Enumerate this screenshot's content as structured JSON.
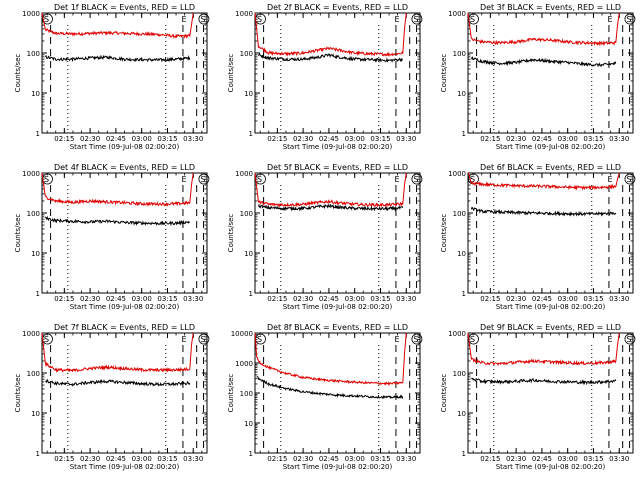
{
  "chart_data": [
    {
      "type": "line",
      "title": "Det 1f BLACK = Events, RED = LLD",
      "xlabel": "Start Time (09-Jul-08 02:00:20)",
      "ylabel": "Counts/sec",
      "yscale": "log",
      "ylim": [
        1,
        1000
      ],
      "xlim": [
        "02:02",
        "03:38"
      ],
      "xticks": [
        "02:15",
        "02:30",
        "02:45",
        "03:00",
        "03:15",
        "03:30"
      ],
      "yticks": [
        "1",
        "10",
        "100",
        "1000"
      ],
      "markers": [
        {
          "label": "S",
          "x": "02:02"
        },
        {
          "label": "E",
          "x": "03:22"
        },
        {
          "label": "S",
          "x": "03:33"
        }
      ],
      "series": [
        {
          "name": "LLD",
          "color": "#e00000",
          "x": [
            "02:02",
            "02:04",
            "02:10",
            "02:20",
            "02:30",
            "02:40",
            "02:50",
            "03:00",
            "03:10",
            "03:20",
            "03:28",
            "03:29",
            "03:30"
          ],
          "y": [
            1000,
            380,
            310,
            300,
            310,
            320,
            310,
            300,
            290,
            260,
            270,
            500,
            1000
          ]
        },
        {
          "name": "Events",
          "color": "#000000",
          "x": [
            "02:04",
            "02:10",
            "02:20",
            "02:30",
            "02:40",
            "02:50",
            "03:00",
            "03:10",
            "03:20",
            "03:28"
          ],
          "y": [
            80,
            70,
            70,
            75,
            78,
            70,
            68,
            67,
            70,
            75
          ]
        }
      ]
    },
    {
      "type": "line",
      "title": "Det 2f BLACK = Events, RED = LLD",
      "xlabel": "Start Time (09-Jul-08 02:00:20)",
      "ylabel": "Counts/sec",
      "yscale": "log",
      "ylim": [
        1,
        1000
      ],
      "xlim": [
        "02:02",
        "03:38"
      ],
      "xticks": [
        "02:15",
        "02:30",
        "02:45",
        "03:00",
        "03:15",
        "03:30"
      ],
      "yticks": [
        "1",
        "10",
        "100",
        "1000"
      ],
      "markers": [
        {
          "label": "S",
          "x": "02:02"
        },
        {
          "label": "E",
          "x": "03:22"
        },
        {
          "label": "S",
          "x": "03:33"
        }
      ],
      "series": [
        {
          "name": "LLD",
          "color": "#e00000",
          "x": [
            "02:02",
            "02:04",
            "02:10",
            "02:20",
            "02:30",
            "02:40",
            "02:45",
            "02:50",
            "03:00",
            "03:10",
            "03:20",
            "03:28",
            "03:29",
            "03:30"
          ],
          "y": [
            1000,
            150,
            100,
            95,
            100,
            120,
            130,
            120,
            100,
            95,
            92,
            100,
            400,
            1000
          ]
        },
        {
          "name": "Events",
          "color": "#000000",
          "x": [
            "02:04",
            "02:10",
            "02:20",
            "02:30",
            "02:40",
            "02:45",
            "02:50",
            "03:00",
            "03:10",
            "03:20",
            "03:28"
          ],
          "y": [
            90,
            75,
            70,
            70,
            80,
            90,
            80,
            70,
            68,
            65,
            70
          ]
        }
      ]
    },
    {
      "type": "line",
      "title": "Det 3f BLACK = Events, RED = LLD",
      "xlabel": "Start Time (09-Jul-08 02:00:20)",
      "ylabel": "Counts/sec",
      "yscale": "log",
      "ylim": [
        1,
        1000
      ],
      "xlim": [
        "02:02",
        "03:38"
      ],
      "xticks": [
        "02:15",
        "02:30",
        "02:45",
        "03:00",
        "03:15",
        "03:30"
      ],
      "yticks": [
        "1",
        "10",
        "100",
        "1000"
      ],
      "markers": [
        {
          "label": "S",
          "x": "02:02"
        },
        {
          "label": "E",
          "x": "03:22"
        },
        {
          "label": "S",
          "x": "03:33"
        }
      ],
      "series": [
        {
          "name": "LLD",
          "color": "#e00000",
          "x": [
            "02:02",
            "02:04",
            "02:10",
            "02:20",
            "02:30",
            "02:40",
            "02:50",
            "03:00",
            "03:10",
            "03:20",
            "03:28",
            "03:29",
            "03:30"
          ],
          "y": [
            1000,
            220,
            190,
            180,
            190,
            220,
            210,
            190,
            180,
            175,
            180,
            500,
            1000
          ]
        },
        {
          "name": "Events",
          "color": "#000000",
          "x": [
            "02:04",
            "02:10",
            "02:20",
            "02:30",
            "02:40",
            "02:50",
            "03:00",
            "03:10",
            "03:20",
            "03:28"
          ],
          "y": [
            75,
            62,
            55,
            58,
            68,
            62,
            58,
            52,
            50,
            55
          ]
        }
      ]
    },
    {
      "type": "line",
      "title": "Det 4f BLACK = Events, RED = LLD",
      "xlabel": "Start Time (09-Jul-08 02:00:20)",
      "ylabel": "Counts/sec",
      "yscale": "log",
      "ylim": [
        1,
        1000
      ],
      "xlim": [
        "02:02",
        "03:38"
      ],
      "xticks": [
        "02:15",
        "02:30",
        "02:45",
        "03:00",
        "03:15",
        "03:30"
      ],
      "yticks": [
        "1",
        "10",
        "100",
        "1000"
      ],
      "markers": [
        {
          "label": "S",
          "x": "02:02"
        },
        {
          "label": "E",
          "x": "03:22"
        },
        {
          "label": "S",
          "x": "03:33"
        }
      ],
      "series": [
        {
          "name": "LLD",
          "color": "#e00000",
          "x": [
            "02:02",
            "02:04",
            "02:10",
            "02:20",
            "02:30",
            "02:40",
            "02:50",
            "03:00",
            "03:10",
            "03:20",
            "03:28",
            "03:29",
            "03:30"
          ],
          "y": [
            1000,
            250,
            200,
            185,
            200,
            190,
            180,
            170,
            168,
            170,
            180,
            500,
            1000
          ]
        },
        {
          "name": "Events",
          "color": "#000000",
          "x": [
            "02:04",
            "02:10",
            "02:20",
            "02:30",
            "02:40",
            "02:50",
            "03:00",
            "03:10",
            "03:20",
            "03:28"
          ],
          "y": [
            75,
            65,
            62,
            60,
            62,
            58,
            56,
            55,
            56,
            60
          ]
        }
      ]
    },
    {
      "type": "line",
      "title": "Det 5f BLACK = Events, RED = LLD",
      "xlabel": "Start Time (09-Jul-08 02:00:20)",
      "ylabel": "Counts/sec",
      "yscale": "log",
      "ylim": [
        1,
        1000
      ],
      "xlim": [
        "02:02",
        "03:38"
      ],
      "xticks": [
        "02:15",
        "02:30",
        "02:45",
        "03:00",
        "03:15",
        "03:30"
      ],
      "yticks": [
        "1",
        "10",
        "100",
        "1000"
      ],
      "markers": [
        {
          "label": "S",
          "x": "02:02"
        },
        {
          "label": "E",
          "x": "03:22"
        },
        {
          "label": "S",
          "x": "03:33"
        }
      ],
      "series": [
        {
          "name": "LLD",
          "color": "#e00000",
          "x": [
            "02:02",
            "02:04",
            "02:10",
            "02:20",
            "02:30",
            "02:40",
            "02:45",
            "02:50",
            "03:00",
            "03:10",
            "03:20",
            "03:28",
            "03:29",
            "03:30"
          ],
          "y": [
            1000,
            190,
            165,
            160,
            165,
            185,
            195,
            180,
            165,
            160,
            160,
            170,
            500,
            1000
          ]
        },
        {
          "name": "Events",
          "color": "#000000",
          "x": [
            "02:04",
            "02:10",
            "02:20",
            "02:30",
            "02:40",
            "02:45",
            "02:50",
            "03:00",
            "03:10",
            "03:20",
            "03:28"
          ],
          "y": [
            150,
            135,
            130,
            130,
            145,
            150,
            140,
            130,
            128,
            128,
            135
          ]
        }
      ]
    },
    {
      "type": "line",
      "title": "Det 6f BLACK = Events, RED = LLD",
      "xlabel": "Start Time (09-Jul-08 02:00:20)",
      "ylabel": "Counts/sec",
      "yscale": "log",
      "ylim": [
        1,
        1000
      ],
      "xlim": [
        "02:02",
        "03:38"
      ],
      "xticks": [
        "02:15",
        "02:30",
        "02:45",
        "03:00",
        "03:15",
        "03:30"
      ],
      "yticks": [
        "1",
        "10",
        "100",
        "1000"
      ],
      "markers": [
        {
          "label": "S",
          "x": "02:02"
        },
        {
          "label": "E",
          "x": "03:22"
        },
        {
          "label": "S",
          "x": "03:33"
        }
      ],
      "series": [
        {
          "name": "LLD",
          "color": "#e00000",
          "x": [
            "02:02",
            "02:04",
            "02:10",
            "02:20",
            "02:30",
            "02:40",
            "02:50",
            "03:00",
            "03:10",
            "03:20",
            "03:28",
            "03:29",
            "03:30"
          ],
          "y": [
            1000,
            560,
            520,
            500,
            480,
            470,
            460,
            440,
            430,
            440,
            460,
            700,
            1000
          ]
        },
        {
          "name": "Events",
          "color": "#000000",
          "x": [
            "02:04",
            "02:10",
            "02:20",
            "02:30",
            "02:40",
            "02:50",
            "03:00",
            "03:10",
            "03:20",
            "03:28"
          ],
          "y": [
            130,
            110,
            105,
            102,
            100,
            98,
            96,
            95,
            96,
            100
          ]
        }
      ]
    },
    {
      "type": "line",
      "title": "Det 7f BLACK = Events, RED = LLD",
      "xlabel": "Start Time (09-Jul-08 02:00:20)",
      "ylabel": "Counts/sec",
      "yscale": "log",
      "ylim": [
        1,
        1000
      ],
      "xlim": [
        "02:02",
        "03:38"
      ],
      "xticks": [
        "02:15",
        "02:30",
        "02:45",
        "03:00",
        "03:15",
        "03:30"
      ],
      "yticks": [
        "1",
        "10",
        "100",
        "1000"
      ],
      "markers": [
        {
          "label": "S",
          "x": "02:02"
        },
        {
          "label": "E",
          "x": "03:22"
        },
        {
          "label": "S",
          "x": "03:33"
        }
      ],
      "series": [
        {
          "name": "LLD",
          "color": "#e00000",
          "x": [
            "02:02",
            "02:04",
            "02:10",
            "02:20",
            "02:30",
            "02:40",
            "02:50",
            "03:00",
            "03:10",
            "03:20",
            "03:28",
            "03:29",
            "03:30"
          ],
          "y": [
            1000,
            170,
            120,
            115,
            130,
            140,
            130,
            120,
            118,
            120,
            125,
            500,
            1000
          ]
        },
        {
          "name": "Events",
          "color": "#000000",
          "x": [
            "02:04",
            "02:10",
            "02:20",
            "02:30",
            "02:40",
            "02:50",
            "03:00",
            "03:10",
            "03:20",
            "03:28"
          ],
          "y": [
            65,
            55,
            52,
            58,
            62,
            58,
            54,
            52,
            53,
            56
          ]
        }
      ]
    },
    {
      "type": "line",
      "title": "Det 8f BLACK = Events, RED = LLD",
      "xlabel": "Start Time (09-Jul-08 02:00:20)",
      "ylabel": "Counts/sec",
      "yscale": "log",
      "ylim": [
        1,
        10000
      ],
      "xlim": [
        "02:02",
        "03:38"
      ],
      "xticks": [
        "02:15",
        "02:30",
        "02:45",
        "03:00",
        "03:15",
        "03:30"
      ],
      "yticks": [
        "1",
        "10",
        "100",
        "1000",
        "10000"
      ],
      "markers": [
        {
          "label": "S",
          "x": "02:02"
        },
        {
          "label": "E",
          "x": "03:22"
        },
        {
          "label": "S",
          "x": "03:33"
        }
      ],
      "series": [
        {
          "name": "LLD",
          "color": "#e00000",
          "x": [
            "02:02",
            "02:03",
            "02:05",
            "02:10",
            "02:20",
            "02:30",
            "02:40",
            "02:50",
            "03:00",
            "03:10",
            "03:20",
            "03:28",
            "03:29",
            "03:30"
          ],
          "y": [
            10000,
            1500,
            1000,
            700,
            450,
            330,
            280,
            250,
            230,
            215,
            205,
            220,
            2000,
            10000
          ]
        },
        {
          "name": "Events",
          "color": "#000000",
          "x": [
            "02:03",
            "02:05",
            "02:10",
            "02:20",
            "02:30",
            "02:40",
            "02:50",
            "03:00",
            "03:10",
            "03:20",
            "03:28"
          ],
          "y": [
            350,
            280,
            200,
            140,
            110,
            95,
            85,
            80,
            75,
            72,
            75
          ]
        }
      ]
    },
    {
      "type": "line",
      "title": "Det 9f BLACK = Events, RED = LLD",
      "xlabel": "Start Time (09-Jul-08 02:00:20)",
      "ylabel": "Counts/sec",
      "yscale": "log",
      "ylim": [
        1,
        1000
      ],
      "xlim": [
        "02:02",
        "03:38"
      ],
      "xticks": [
        "02:15",
        "02:30",
        "02:45",
        "03:00",
        "03:15",
        "03:30"
      ],
      "yticks": [
        "1",
        "10",
        "100",
        "1000"
      ],
      "markers": [
        {
          "label": "S",
          "x": "02:02"
        },
        {
          "label": "E",
          "x": "03:22"
        },
        {
          "label": "S",
          "x": "03:33"
        }
      ],
      "series": [
        {
          "name": "LLD",
          "color": "#e00000",
          "x": [
            "02:02",
            "02:04",
            "02:10",
            "02:20",
            "02:30",
            "02:40",
            "02:50",
            "03:00",
            "03:10",
            "03:20",
            "03:28",
            "03:29",
            "03:30"
          ],
          "y": [
            1000,
            220,
            180,
            170,
            185,
            200,
            190,
            180,
            175,
            180,
            195,
            500,
            1000
          ]
        },
        {
          "name": "Events",
          "color": "#000000",
          "x": [
            "02:04",
            "02:10",
            "02:20",
            "02:30",
            "02:40",
            "02:50",
            "03:00",
            "03:10",
            "03:20",
            "03:28"
          ],
          "y": [
            72,
            62,
            60,
            62,
            66,
            62,
            60,
            58,
            60,
            64
          ]
        }
      ]
    }
  ]
}
